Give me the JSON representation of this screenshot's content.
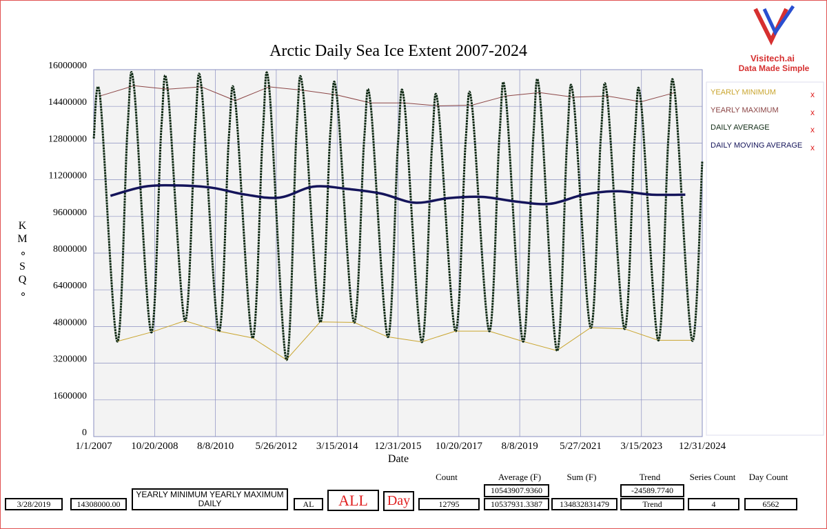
{
  "chart_data": {
    "type": "line",
    "title": "Arctic Daily Sea Ice Extent 2007-2024",
    "xlabel": "Date",
    "ylabel": "KM∘SQ∘",
    "xlim": [
      "1/1/2007",
      "12/31/2024"
    ],
    "xticks": [
      "1/1/2007",
      "10/20/2008",
      "8/8/2010",
      "5/26/2012",
      "3/15/2014",
      "12/31/2015",
      "10/20/2017",
      "8/8/2019",
      "5/27/2021",
      "3/15/2023",
      "12/31/2024"
    ],
    "ylim": [
      0,
      16000000
    ],
    "yticks": [
      0,
      1600000,
      3200000,
      4800000,
      6400000,
      8000000,
      9600000,
      11200000,
      12800000,
      14400000,
      16000000
    ],
    "grid": true,
    "legend_remove": "x",
    "series": [
      {
        "name": "YEARLY MINIMUM",
        "color": "#c9a52e",
        "width": 1,
        "x": [
          "9/12/2007",
          "9/12/2008",
          "9/12/2009",
          "9/12/2010",
          "9/12/2011",
          "9/12/2012",
          "9/12/2013",
          "9/12/2014",
          "9/12/2015",
          "9/12/2016",
          "9/12/2017",
          "9/12/2018",
          "9/12/2019",
          "9/12/2020",
          "9/12/2021",
          "9/12/2022",
          "9/12/2023",
          "9/12/2024"
        ],
        "values": [
          4150000,
          4550000,
          5050000,
          4600000,
          4300000,
          3350000,
          5000000,
          4980000,
          4350000,
          4130000,
          4600000,
          4600000,
          4150000,
          3750000,
          4750000,
          4700000,
          4200000,
          4200000
        ]
      },
      {
        "name": "YEARLY MAXIMUM",
        "color": "#8b4545",
        "width": 1,
        "x": [
          "3/10/2007",
          "3/10/2008",
          "3/10/2009",
          "3/10/2010",
          "3/10/2011",
          "3/10/2012",
          "3/10/2013",
          "3/10/2014",
          "3/10/2015",
          "3/10/2016",
          "3/10/2017",
          "3/10/2018",
          "3/10/2019",
          "3/10/2020",
          "3/10/2021",
          "3/10/2022",
          "3/10/2023",
          "3/10/2024"
        ],
        "values": [
          14850000,
          15300000,
          15150000,
          15250000,
          14650000,
          15250000,
          15100000,
          14900000,
          14550000,
          14550000,
          14420000,
          14450000,
          14850000,
          15000000,
          14800000,
          14850000,
          14600000,
          15000000
        ]
      },
      {
        "name": "DAILY AVERAGE",
        "color": "#0f2a14",
        "width": 3,
        "smooth": true,
        "x": [
          "1/1/2007",
          "3/10/2007",
          "9/12/2007",
          "1/1/2008",
          "3/10/2008",
          "9/12/2008",
          "1/1/2009",
          "3/10/2009",
          "9/12/2009",
          "1/1/2010",
          "3/10/2010",
          "9/12/2010",
          "1/1/2011",
          "3/10/2011",
          "9/12/2011",
          "1/1/2012",
          "3/10/2012",
          "9/12/2012",
          "1/1/2013",
          "3/10/2013",
          "9/12/2013",
          "1/1/2014",
          "3/10/2014",
          "9/12/2014",
          "1/1/2015",
          "3/10/2015",
          "9/12/2015",
          "1/1/2016",
          "3/10/2016",
          "9/12/2016",
          "1/1/2017",
          "3/10/2017",
          "9/12/2017",
          "1/1/2018",
          "3/10/2018",
          "9/12/2018",
          "1/1/2019",
          "3/10/2019",
          "9/12/2019",
          "1/1/2020",
          "3/10/2020",
          "9/12/2020",
          "1/1/2021",
          "3/10/2021",
          "9/12/2021",
          "1/1/2022",
          "3/10/2022",
          "9/12/2022",
          "1/1/2023",
          "3/10/2023",
          "9/12/2023",
          "1/1/2024",
          "3/10/2024",
          "9/12/2024",
          "12/31/2024"
        ],
        "values": [
          13000000,
          14850000,
          4150000,
          13400000,
          15300000,
          4550000,
          13500000,
          15150000,
          5050000,
          13400000,
          15250000,
          4600000,
          13100000,
          14650000,
          4300000,
          13200000,
          15250000,
          3350000,
          13400000,
          15100000,
          5000000,
          13300000,
          14900000,
          4980000,
          13000000,
          14550000,
          4350000,
          12800000,
          14550000,
          4130000,
          12600000,
          14420000,
          4600000,
          12900000,
          14450000,
          4600000,
          13100000,
          14850000,
          4150000,
          13000000,
          15000000,
          3750000,
          12900000,
          14800000,
          4750000,
          13100000,
          14850000,
          4700000,
          13000000,
          14600000,
          4200000,
          13100000,
          15000000,
          4200000,
          12000000
        ]
      },
      {
        "name": "DAILY MOVING AVERAGE",
        "color": "#14145a",
        "width": 3.5,
        "smooth": true,
        "x": [
          "7/1/2007",
          "7/1/2008",
          "7/1/2009",
          "7/1/2010",
          "7/1/2011",
          "7/1/2012",
          "7/1/2013",
          "7/1/2014",
          "7/1/2015",
          "7/1/2016",
          "7/1/2017",
          "7/1/2018",
          "7/1/2019",
          "7/1/2020",
          "7/1/2021",
          "7/1/2022",
          "7/1/2023",
          "7/1/2024"
        ],
        "values": [
          10500000,
          10900000,
          10950000,
          10850000,
          10550000,
          10420000,
          10900000,
          10800000,
          10600000,
          10200000,
          10400000,
          10450000,
          10250000,
          10150000,
          10550000,
          10700000,
          10550000,
          10550000
        ]
      }
    ]
  },
  "logo": {
    "name": "Visitech.ai",
    "tagline": "Data Made Simple"
  },
  "footer": {
    "headers": [
      "Count",
      "Average (F)",
      "Sum (F)",
      "Trend",
      "Series Count",
      "Day Count"
    ],
    "date": "3/28/2019",
    "value": "14308000.00",
    "series_list": "YEARLY MINIMUM YEARLY MAXIMUM DAILY",
    "region": "AL",
    "scope": "ALL",
    "period": "Day",
    "count": "12795",
    "average_top": "10543907.9360",
    "average_bottom": "10537931.3387",
    "sum": "134832831479",
    "trend_top": "-24589.7740",
    "trend_bottom": "Trend",
    "series_count": "4",
    "day_count": "6562"
  }
}
